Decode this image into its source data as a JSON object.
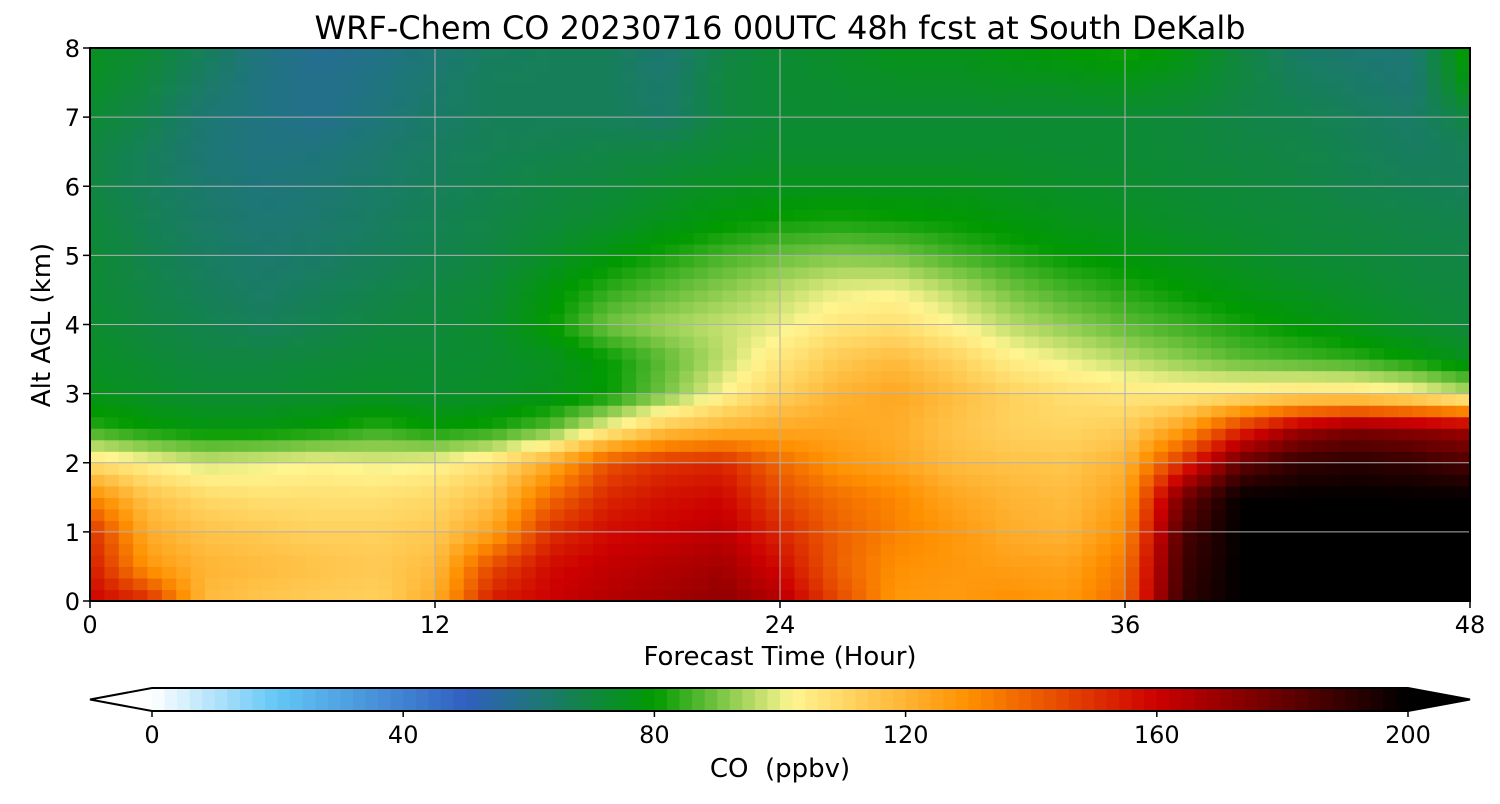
{
  "chart_data": {
    "type": "heatmap",
    "title": "WRF-Chem CO  20230716 00UTC 48h fcst at South DeKalb",
    "xlabel": "Forecast Time (Hour)",
    "ylabel": "Alt AGL (km)",
    "xlim": [
      0,
      48
    ],
    "ylim": [
      0,
      8
    ],
    "x_ticks": [
      0,
      12,
      24,
      36,
      48
    ],
    "y_ticks": [
      0,
      1,
      2,
      3,
      4,
      5,
      6,
      7,
      8
    ],
    "grid": true,
    "x_hours": [
      0,
      2,
      4,
      6,
      8,
      10,
      12,
      14,
      16,
      18,
      20,
      22,
      24,
      26,
      28,
      30,
      32,
      34,
      36,
      38,
      40,
      42,
      44,
      46,
      48
    ],
    "y_km": [
      0,
      0.5,
      1,
      1.5,
      2,
      2.5,
      3,
      3.5,
      4,
      4.5,
      5,
      5.5,
      6,
      6.5,
      7,
      7.5,
      8
    ],
    "colorbar": {
      "label": "CO  (ppbv)",
      "ticks": [
        0,
        40,
        80,
        120,
        160,
        200
      ],
      "min": 0,
      "max": 200,
      "extend": "both",
      "colors": [
        "#ffffff",
        "#62c6f5",
        "#3060c0",
        "#009a00",
        "#fff590",
        "#ff9000",
        "#cc0000",
        "#000000"
      ],
      "color_stops": [
        0,
        20,
        50,
        80,
        102,
        130,
        160,
        200
      ]
    },
    "values": [
      [
        160,
        152,
        118,
        115,
        113,
        112,
        122,
        155,
        160,
        165,
        168,
        172,
        165,
        145,
        128,
        127,
        130,
        128,
        138,
        190,
        200,
        200,
        200,
        200,
        200
      ],
      [
        155,
        128,
        120,
        118,
        116,
        114,
        118,
        145,
        158,
        162,
        165,
        168,
        158,
        140,
        130,
        128,
        126,
        125,
        135,
        188,
        200,
        200,
        200,
        200,
        200
      ],
      [
        150,
        122,
        116,
        114,
        112,
        112,
        114,
        125,
        150,
        158,
        160,
        163,
        152,
        140,
        133,
        128,
        122,
        120,
        130,
        185,
        200,
        200,
        200,
        200,
        200
      ],
      [
        132,
        116,
        110,
        108,
        108,
        108,
        110,
        116,
        138,
        152,
        157,
        159,
        145,
        137,
        132,
        124,
        120,
        118,
        125,
        178,
        200,
        200,
        200,
        200,
        200
      ],
      [
        108,
        103,
        98,
        100,
        102,
        100,
        102,
        108,
        122,
        143,
        150,
        152,
        138,
        128,
        124,
        118,
        116,
        115,
        120,
        150,
        180,
        190,
        192,
        190,
        185
      ],
      [
        84,
        80,
        78,
        78,
        80,
        84,
        80,
        82,
        88,
        102,
        115,
        120,
        123,
        124,
        122,
        116,
        112,
        111,
        113,
        125,
        150,
        168,
        175,
        172,
        168
      ],
      [
        76,
        74,
        72,
        72,
        73,
        74,
        73,
        74,
        76,
        80,
        90,
        102,
        112,
        120,
        124,
        118,
        112,
        108,
        106,
        105,
        106,
        108,
        108,
        104,
        96
      ],
      [
        74,
        72,
        70,
        70,
        71,
        72,
        72,
        73,
        75,
        80,
        88,
        96,
        106,
        114,
        118,
        112,
        104,
        100,
        96,
        92,
        88,
        86,
        84,
        80,
        75
      ],
      [
        73,
        70,
        68,
        66,
        68,
        70,
        71,
        73,
        80,
        90,
        94,
        97,
        100,
        106,
        108,
        102,
        96,
        92,
        88,
        85,
        82,
        79,
        76,
        73,
        71
      ],
      [
        72,
        69,
        66,
        64,
        66,
        68,
        70,
        72,
        78,
        84,
        88,
        92,
        96,
        100,
        101,
        96,
        90,
        86,
        83,
        80,
        77,
        75,
        73,
        71,
        70
      ],
      [
        72,
        68,
        65,
        63,
        64,
        66,
        68,
        70,
        74,
        78,
        82,
        86,
        89,
        91,
        90,
        86,
        83,
        80,
        78,
        76,
        74,
        72,
        71,
        70,
        69
      ],
      [
        71,
        67,
        64,
        62,
        63,
        65,
        67,
        69,
        71,
        73,
        76,
        79,
        81,
        82,
        81,
        80,
        78,
        76,
        75,
        73,
        72,
        71,
        70,
        69,
        68
      ],
      [
        70,
        66,
        63,
        61,
        62,
        64,
        66,
        68,
        70,
        71,
        73,
        75,
        76,
        76,
        76,
        76,
        75,
        74,
        73,
        72,
        71,
        70,
        68,
        67,
        66
      ],
      [
        70,
        66,
        62,
        60,
        61,
        63,
        65,
        67,
        68,
        69,
        70,
        72,
        73,
        73,
        73,
        73,
        73,
        72,
        72,
        71,
        70,
        69,
        67,
        65,
        66
      ],
      [
        72,
        68,
        62,
        60,
        58,
        61,
        64,
        66,
        66,
        66,
        64,
        70,
        72,
        72,
        72,
        72,
        72,
        72,
        72,
        71,
        69,
        68,
        66,
        64,
        70
      ],
      [
        74,
        70,
        64,
        60,
        58,
        60,
        63,
        66,
        66,
        66,
        63,
        70,
        72,
        73,
        74,
        74,
        75,
        75,
        76,
        74,
        70,
        66,
        64,
        62,
        78
      ],
      [
        75,
        72,
        66,
        60,
        57,
        59,
        62,
        65,
        66,
        66,
        62,
        69,
        72,
        74,
        76,
        76,
        78,
        80,
        82,
        78,
        70,
        64,
        62,
        62,
        82
      ]
    ]
  }
}
